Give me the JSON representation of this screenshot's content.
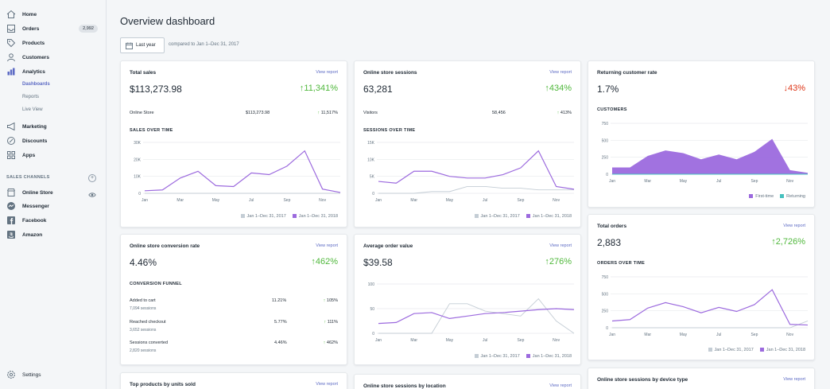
{
  "sidebar": {
    "items": [
      {
        "label": "Home",
        "icon": "home-icon"
      },
      {
        "label": "Orders",
        "icon": "orders-icon",
        "badge": "2,992"
      },
      {
        "label": "Products",
        "icon": "tag-icon"
      },
      {
        "label": "Customers",
        "icon": "person-icon"
      },
      {
        "label": "Analytics",
        "icon": "bar-chart-icon"
      },
      {
        "label": "Marketing",
        "icon": "megaphone-icon"
      },
      {
        "label": "Discounts",
        "icon": "discount-icon"
      },
      {
        "label": "Apps",
        "icon": "apps-icon"
      }
    ],
    "analytics_sub": [
      "Dashboards",
      "Reports",
      "Live View"
    ],
    "sales_channels_heading": "SALES CHANNELS",
    "channels": [
      {
        "label": "Online Store",
        "icon": "store-icon"
      },
      {
        "label": "Messenger",
        "icon": "messenger-icon"
      },
      {
        "label": "Facebook",
        "icon": "facebook-icon"
      },
      {
        "label": "Amazon",
        "icon": "amazon-icon"
      }
    ],
    "settings": "Settings"
  },
  "header": {
    "title": "Overview dashboard",
    "date_button": "Last year",
    "compare": "compared to Jan 1–Dec 31, 2017"
  },
  "view_report": "View report",
  "cards": {
    "total_sales": {
      "title": "Total sales",
      "value": "$113,273.98",
      "change": "11,341%",
      "row_label": "Online Store",
      "row_value": "$113,273.98",
      "row_change": "11,517%",
      "section": "SALES OVER TIME"
    },
    "sessions": {
      "title": "Online store sessions",
      "value": "63,281",
      "change": "434%",
      "row_label": "Visitors",
      "row_value": "58,456",
      "row_change": "413%",
      "section": "SESSIONS OVER TIME"
    },
    "returning": {
      "title": "Returning customer rate",
      "value": "1.7%",
      "change": "43%",
      "section": "CUSTOMERS"
    },
    "conversion": {
      "title": "Online store conversion rate",
      "value": "4.46%",
      "change": "462%",
      "section": "CONVERSION FUNNEL",
      "rows": [
        {
          "label": "Added to cart",
          "sub": "7,094 sessions",
          "pct": "11.21%",
          "change": "105%"
        },
        {
          "label": "Reached checkout",
          "sub": "3,652 sessions",
          "pct": "5.77%",
          "change": "111%"
        },
        {
          "label": "Sessions converted",
          "sub": "2,820 sessions",
          "pct": "4.46%",
          "change": "462%"
        }
      ]
    },
    "aov": {
      "title": "Average order value",
      "value": "$39.58",
      "change": "276%"
    },
    "orders": {
      "title": "Total orders",
      "value": "2,883",
      "change": "2,726%",
      "section": "ORDERS OVER TIME"
    },
    "top_products": {
      "title": "Top products by units sold"
    },
    "by_location": {
      "title": "Online store sessions by location"
    },
    "by_device": {
      "title": "Online store sessions by device type"
    }
  },
  "legend": {
    "prev": "Jan 1–Dec 31, 2017",
    "curr": "Jan 1–Dec 31, 2018",
    "first_time": "First-time",
    "returning": "Returning"
  },
  "colors": {
    "curr": "#9c6ade",
    "prev": "#c4cdd5",
    "returning": "#47c1bf",
    "up": "#50b83c",
    "down": "#de3618",
    "link": "#5c6ac4"
  },
  "chart_data": [
    {
      "id": "sales",
      "type": "line",
      "x": [
        "Jan",
        "Feb",
        "Mar",
        "Apr",
        "May",
        "Jun",
        "Jul",
        "Aug",
        "Sep",
        "Oct",
        "Nov",
        "Dec"
      ],
      "xticks": [
        "Jan",
        "Mar",
        "May",
        "Jul",
        "Sep",
        "Nov"
      ],
      "yticks": [
        "0",
        "10K",
        "20K",
        "30K"
      ],
      "ylim": [
        0,
        30000
      ],
      "series": [
        {
          "name": "Jan 1–Dec 31, 2017",
          "values": [
            0,
            0,
            0,
            0,
            0,
            0,
            0,
            0,
            0,
            0,
            0,
            0
          ]
        },
        {
          "name": "Jan 1–Dec 31, 2018",
          "values": [
            1500,
            2000,
            9000,
            13000,
            4500,
            4000,
            12000,
            11000,
            16000,
            25000,
            2500,
            500
          ]
        }
      ]
    },
    {
      "id": "sessions",
      "type": "line",
      "x": [
        "Jan",
        "Feb",
        "Mar",
        "Apr",
        "May",
        "Jun",
        "Jul",
        "Aug",
        "Sep",
        "Oct",
        "Nov",
        "Dec"
      ],
      "xticks": [
        "Jan",
        "Mar",
        "May",
        "Jul",
        "Sep",
        "Nov"
      ],
      "yticks": [
        "0",
        "5K",
        "10K",
        "15K"
      ],
      "ylim": [
        0,
        15000
      ],
      "series": [
        {
          "name": "Jan 1–Dec 31, 2017",
          "values": [
            0,
            0,
            0,
            500,
            500,
            2000,
            2000,
            1500,
            1500,
            1000,
            1000,
            1000
          ]
        },
        {
          "name": "Jan 1–Dec 31, 2018",
          "values": [
            3500,
            3000,
            6500,
            6500,
            5000,
            4500,
            4500,
            5500,
            7500,
            12500,
            2000,
            1200
          ]
        }
      ]
    },
    {
      "id": "customers",
      "type": "area",
      "x": [
        "Jan",
        "Feb",
        "Mar",
        "Apr",
        "May",
        "Jun",
        "Jul",
        "Aug",
        "Sep",
        "Oct",
        "Nov",
        "Dec"
      ],
      "xticks": [
        "Jan",
        "Mar",
        "May",
        "Jul",
        "Sep",
        "Nov"
      ],
      "yticks": [
        "0",
        "250",
        "500",
        "750"
      ],
      "ylim": [
        0,
        750
      ],
      "series": [
        {
          "name": "First-time",
          "values": [
            100,
            100,
            270,
            350,
            310,
            220,
            290,
            220,
            330,
            520,
            60,
            20
          ]
        },
        {
          "name": "Returning",
          "values": [
            0,
            0,
            0,
            0,
            0,
            0,
            0,
            0,
            0,
            0,
            0,
            0
          ]
        }
      ]
    },
    {
      "id": "aov",
      "type": "line",
      "x": [
        "Jan",
        "Feb",
        "Mar",
        "Apr",
        "May",
        "Jun",
        "Jul",
        "Aug",
        "Sep",
        "Oct",
        "Nov",
        "Dec"
      ],
      "xticks": [
        "Jan",
        "Mar",
        "May",
        "Jul",
        "Sep",
        "Nov"
      ],
      "yticks": [
        "0",
        "50",
        "100"
      ],
      "ylim": [
        0,
        100
      ],
      "series": [
        {
          "name": "Jan 1–Dec 31, 2017",
          "values": [
            0,
            0,
            0,
            0,
            60,
            60,
            45,
            40,
            35,
            70,
            25,
            0
          ]
        },
        {
          "name": "Jan 1–Dec 31, 2018",
          "values": [
            20,
            22,
            40,
            42,
            30,
            35,
            40,
            42,
            45,
            48,
            50,
            48
          ]
        }
      ]
    },
    {
      "id": "orders",
      "type": "line",
      "x": [
        "Jan",
        "Feb",
        "Mar",
        "Apr",
        "May",
        "Jun",
        "Jul",
        "Aug",
        "Sep",
        "Oct",
        "Nov",
        "Dec"
      ],
      "xticks": [
        "Jan",
        "Mar",
        "May",
        "Jul",
        "Sep",
        "Nov"
      ],
      "yticks": [
        "0",
        "250",
        "500",
        "750"
      ],
      "ylim": [
        0,
        750
      ],
      "series": [
        {
          "name": "Jan 1–Dec 31, 2017",
          "values": [
            0,
            0,
            0,
            0,
            0,
            0,
            0,
            0,
            0,
            0,
            0,
            100
          ]
        },
        {
          "name": "Jan 1–Dec 31, 2018",
          "values": [
            100,
            120,
            290,
            370,
            310,
            220,
            300,
            240,
            340,
            560,
            50,
            40
          ]
        }
      ]
    }
  ]
}
